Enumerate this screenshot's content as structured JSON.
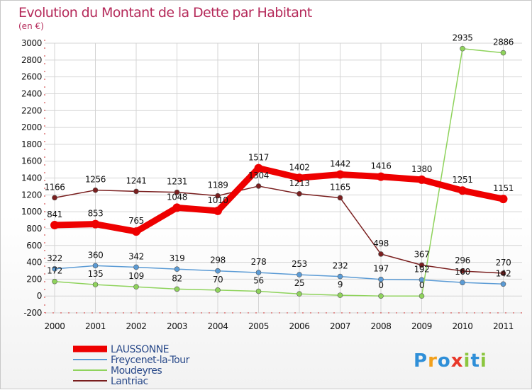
{
  "chart_data": {
    "type": "line",
    "title": "Evolution du Montant de la Dette par Habitant",
    "subtitle": "(en €)",
    "xlabel": "",
    "ylabel": "",
    "categories": [
      "2000",
      "2001",
      "2002",
      "2003",
      "2004",
      "2005",
      "2006",
      "2007",
      "2008",
      "2009",
      "2010",
      "2011"
    ],
    "ylim": [
      -200,
      3000
    ],
    "yticks": [
      -200,
      0,
      200,
      400,
      600,
      800,
      1000,
      1200,
      1400,
      1600,
      1800,
      2000,
      2200,
      2400,
      2600,
      2800,
      3000
    ],
    "grid": true,
    "legend_position": "bottom-left",
    "series": [
      {
        "name": "LAUSSONNE",
        "color": "#ee0000",
        "emphasis": true,
        "values": [
          841,
          853,
          765,
          1048,
          1010,
          1517,
          1402,
          1442,
          1416,
          1380,
          1251,
          1151
        ]
      },
      {
        "name": "Freycenet-la-Tour",
        "color": "#5b9bd5",
        "emphasis": false,
        "values": [
          322,
          360,
          342,
          319,
          298,
          278,
          253,
          232,
          197,
          192,
          160,
          142
        ]
      },
      {
        "name": "Moudeyres",
        "color": "#8fd35c",
        "emphasis": false,
        "values": [
          172,
          135,
          109,
          82,
          70,
          56,
          25,
          9,
          0,
          0,
          2935,
          2886
        ]
      },
      {
        "name": "Lantriac",
        "color": "#7a1f1f",
        "emphasis": false,
        "values": [
          1166,
          1256,
          1241,
          1231,
          1189,
          1304,
          1213,
          1165,
          498,
          367,
          296,
          270
        ]
      }
    ]
  },
  "brand": {
    "letters": [
      "P",
      "r",
      "o",
      "x",
      "i",
      "t",
      "i"
    ],
    "colors": [
      "#2f8fd8",
      "#f2a01c",
      "#2f8fd8",
      "#e8382a",
      "#8cc63f",
      "#2f8fd8",
      "#8cc63f"
    ]
  }
}
